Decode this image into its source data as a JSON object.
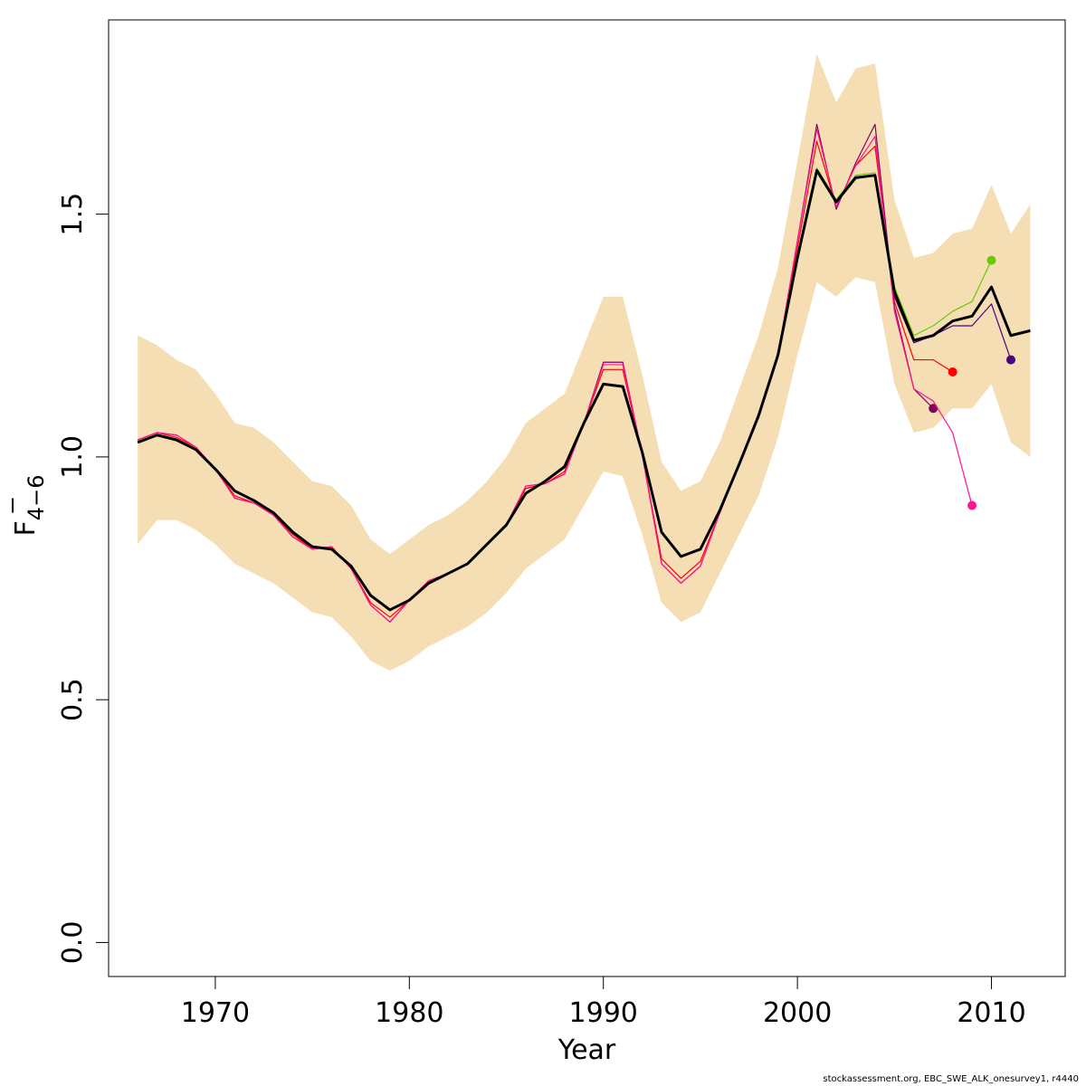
{
  "chart_data": {
    "type": "line",
    "title": "",
    "xlabel": "Year",
    "ylabel": {
      "main": "F",
      "subscript": "4−6"
    },
    "xlim": [
      1964.5,
      2013.8
    ],
    "ylim": [
      -0.07,
      1.9
    ],
    "x_ticks": [
      1970,
      1980,
      1990,
      2000,
      2010
    ],
    "y_ticks": [
      0.0,
      0.5,
      1.0,
      1.5
    ],
    "y_tick_labels": [
      "0.0",
      "0.5",
      "1.0",
      "1.5"
    ],
    "grid": false,
    "legend": "none",
    "confidence_band": {
      "color": "#f5deb3",
      "x": [
        1966,
        1967,
        1968,
        1969,
        1970,
        1971,
        1972,
        1973,
        1974,
        1975,
        1976,
        1977,
        1978,
        1979,
        1980,
        1981,
        1982,
        1983,
        1984,
        1985,
        1986,
        1987,
        1988,
        1989,
        1990,
        1991,
        1992,
        1993,
        1994,
        1995,
        1996,
        1997,
        1998,
        1999,
        2000,
        2001,
        2002,
        2003,
        2004,
        2005,
        2006,
        2007,
        2008,
        2009,
        2010,
        2011,
        2012
      ],
      "upper": [
        1.25,
        1.23,
        1.2,
        1.18,
        1.13,
        1.07,
        1.06,
        1.03,
        0.99,
        0.95,
        0.94,
        0.9,
        0.83,
        0.8,
        0.83,
        0.86,
        0.88,
        0.91,
        0.95,
        1.0,
        1.07,
        1.1,
        1.13,
        1.23,
        1.33,
        1.33,
        1.17,
        0.99,
        0.93,
        0.95,
        1.03,
        1.14,
        1.25,
        1.39,
        1.61,
        1.83,
        1.73,
        1.8,
        1.81,
        1.53,
        1.41,
        1.42,
        1.46,
        1.47,
        1.56,
        1.46,
        1.52
      ],
      "lower": [
        0.82,
        0.87,
        0.87,
        0.85,
        0.82,
        0.78,
        0.76,
        0.74,
        0.71,
        0.68,
        0.67,
        0.63,
        0.58,
        0.56,
        0.58,
        0.61,
        0.63,
        0.65,
        0.68,
        0.72,
        0.77,
        0.8,
        0.83,
        0.9,
        0.97,
        0.96,
        0.84,
        0.7,
        0.66,
        0.68,
        0.76,
        0.84,
        0.92,
        1.04,
        1.21,
        1.36,
        1.33,
        1.37,
        1.36,
        1.15,
        1.05,
        1.06,
        1.1,
        1.1,
        1.15,
        1.03,
        1.0
      ]
    },
    "series": [
      {
        "color": "#000000",
        "width": 3,
        "end_marker": false,
        "x": [
          1966,
          1967,
          1968,
          1969,
          1970,
          1971,
          1972,
          1973,
          1974,
          1975,
          1976,
          1977,
          1978,
          1979,
          1980,
          1981,
          1982,
          1983,
          1984,
          1985,
          1986,
          1987,
          1988,
          1989,
          1990,
          1991,
          1992,
          1993,
          1994,
          1995,
          1996,
          1997,
          1998,
          1999,
          2000,
          2001,
          2002,
          2003,
          2004,
          2005,
          2006,
          2007,
          2008,
          2009,
          2010,
          2011,
          2012
        ],
        "values": [
          1.03,
          1.045,
          1.035,
          1.015,
          0.975,
          0.93,
          0.91,
          0.885,
          0.845,
          0.815,
          0.81,
          0.775,
          0.715,
          0.685,
          0.705,
          0.74,
          0.76,
          0.78,
          0.82,
          0.86,
          0.925,
          0.95,
          0.98,
          1.07,
          1.15,
          1.145,
          1.01,
          0.845,
          0.795,
          0.81,
          0.89,
          0.985,
          1.085,
          1.21,
          1.41,
          1.59,
          1.525,
          1.575,
          1.58,
          1.34,
          1.24,
          1.25,
          1.28,
          1.29,
          1.35,
          1.25,
          1.26
        ]
      },
      {
        "color": "#66cc00",
        "width": 1.2,
        "end_marker": true,
        "x": [
          1966,
          1967,
          1968,
          1969,
          1970,
          1971,
          1972,
          1973,
          1974,
          1975,
          1976,
          1977,
          1978,
          1979,
          1980,
          1981,
          1982,
          1983,
          1984,
          1985,
          1986,
          1987,
          1988,
          1989,
          1990,
          1991,
          1992,
          1993,
          1994,
          1995,
          1996,
          1997,
          1998,
          1999,
          2000,
          2001,
          2002,
          2003,
          2004,
          2005,
          2006,
          2007,
          2008,
          2009,
          2010
        ],
        "values": [
          1.03,
          1.045,
          1.035,
          1.015,
          0.975,
          0.93,
          0.91,
          0.885,
          0.845,
          0.815,
          0.81,
          0.775,
          0.715,
          0.685,
          0.705,
          0.74,
          0.76,
          0.78,
          0.82,
          0.86,
          0.925,
          0.95,
          0.98,
          1.07,
          1.15,
          1.145,
          1.01,
          0.845,
          0.795,
          0.81,
          0.89,
          0.985,
          1.085,
          1.21,
          1.41,
          1.595,
          1.53,
          1.58,
          1.585,
          1.35,
          1.25,
          1.27,
          1.3,
          1.32,
          1.405
        ]
      },
      {
        "color": "#4b0082",
        "width": 1.2,
        "end_marker": true,
        "x": [
          1966,
          1967,
          1968,
          1969,
          1970,
          1971,
          1972,
          1973,
          1974,
          1975,
          1976,
          1977,
          1978,
          1979,
          1980,
          1981,
          1982,
          1983,
          1984,
          1985,
          1986,
          1987,
          1988,
          1989,
          1990,
          1991,
          1992,
          1993,
          1994,
          1995,
          1996,
          1997,
          1998,
          1999,
          2000,
          2001,
          2002,
          2003,
          2004,
          2005,
          2006,
          2007,
          2008,
          2009,
          2010,
          2011
        ],
        "values": [
          1.03,
          1.045,
          1.035,
          1.015,
          0.975,
          0.93,
          0.91,
          0.885,
          0.845,
          0.815,
          0.81,
          0.775,
          0.715,
          0.685,
          0.705,
          0.74,
          0.76,
          0.78,
          0.82,
          0.86,
          0.925,
          0.95,
          0.98,
          1.07,
          1.15,
          1.145,
          1.01,
          0.845,
          0.795,
          0.81,
          0.89,
          0.985,
          1.085,
          1.21,
          1.41,
          1.59,
          1.525,
          1.575,
          1.58,
          1.33,
          1.235,
          1.25,
          1.27,
          1.27,
          1.315,
          1.2
        ]
      },
      {
        "color": "#ff0000",
        "width": 1.2,
        "end_marker": true,
        "x": [
          1966,
          1967,
          1968,
          1969,
          1970,
          1971,
          1972,
          1973,
          1974,
          1975,
          1976,
          1977,
          1978,
          1979,
          1980,
          1981,
          1982,
          1983,
          1984,
          1985,
          1986,
          1987,
          1988,
          1989,
          1990,
          1991,
          1992,
          1993,
          1994,
          1995,
          1996,
          1997,
          1998,
          1999,
          2000,
          2001,
          2002,
          2003,
          2004,
          2005,
          2006,
          2007,
          2008
        ],
        "values": [
          1.035,
          1.05,
          1.04,
          1.02,
          0.975,
          0.92,
          0.905,
          0.88,
          0.84,
          0.81,
          0.815,
          0.77,
          0.7,
          0.67,
          0.705,
          0.745,
          0.76,
          0.78,
          0.82,
          0.86,
          0.935,
          0.945,
          0.97,
          1.07,
          1.18,
          1.18,
          1.005,
          0.79,
          0.75,
          0.785,
          0.885,
          0.985,
          1.09,
          1.21,
          1.43,
          1.65,
          1.515,
          1.6,
          1.64,
          1.32,
          1.2,
          1.2,
          1.175
        ]
      },
      {
        "color": "#800060",
        "width": 1.2,
        "end_marker": true,
        "x": [
          1966,
          1967,
          1968,
          1969,
          1970,
          1971,
          1972,
          1973,
          1974,
          1975,
          1976,
          1977,
          1978,
          1979,
          1980,
          1981,
          1982,
          1983,
          1984,
          1985,
          1986,
          1987,
          1988,
          1989,
          1990,
          1991,
          1992,
          1993,
          1994,
          1995,
          1996,
          1997,
          1998,
          1999,
          2000,
          2001,
          2002,
          2003,
          2004,
          2005,
          2006,
          2007
        ],
        "values": [
          1.035,
          1.05,
          1.045,
          1.02,
          0.975,
          0.915,
          0.905,
          0.88,
          0.835,
          0.81,
          0.815,
          0.77,
          0.695,
          0.66,
          0.705,
          0.745,
          0.76,
          0.78,
          0.82,
          0.86,
          0.94,
          0.945,
          0.965,
          1.07,
          1.195,
          1.195,
          1.005,
          0.78,
          0.74,
          0.775,
          0.885,
          0.985,
          1.09,
          1.21,
          1.445,
          1.685,
          1.51,
          1.605,
          1.685,
          1.31,
          1.14,
          1.1
        ]
      },
      {
        "color": "#ff1493",
        "width": 1.2,
        "end_marker": true,
        "x": [
          1966,
          1967,
          1968,
          1969,
          1970,
          1971,
          1972,
          1973,
          1974,
          1975,
          1976,
          1977,
          1978,
          1979,
          1980,
          1981,
          1982,
          1983,
          1984,
          1985,
          1986,
          1987,
          1988,
          1989,
          1990,
          1991,
          1992,
          1993,
          1994,
          1995,
          1996,
          1997,
          1998,
          1999,
          2000,
          2001,
          2002,
          2003,
          2004,
          2005,
          2006,
          2007,
          2008,
          2009
        ],
        "values": [
          1.035,
          1.05,
          1.045,
          1.02,
          0.975,
          0.915,
          0.905,
          0.88,
          0.835,
          0.81,
          0.815,
          0.77,
          0.695,
          0.66,
          0.705,
          0.745,
          0.76,
          0.78,
          0.82,
          0.86,
          0.94,
          0.945,
          0.965,
          1.07,
          1.19,
          1.19,
          1.005,
          0.78,
          0.74,
          0.775,
          0.885,
          0.985,
          1.09,
          1.21,
          1.445,
          1.675,
          1.515,
          1.6,
          1.66,
          1.3,
          1.14,
          1.115,
          1.05,
          0.9
        ]
      }
    ]
  },
  "footer_note": "stockassessment.org, EBC_SWE_ALK_onesurvey1, r4440"
}
